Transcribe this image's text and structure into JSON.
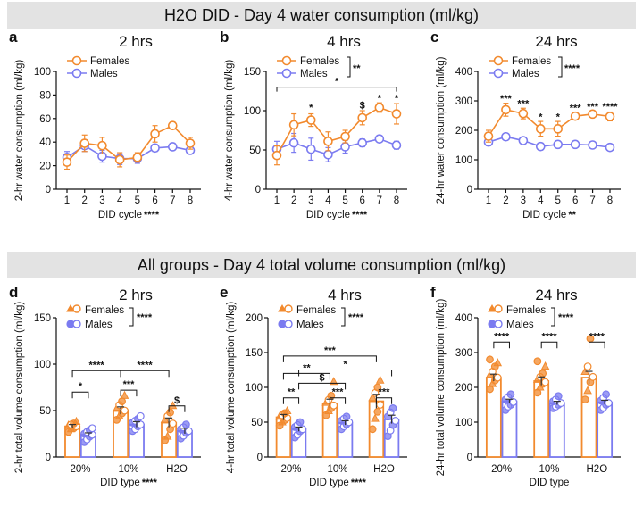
{
  "banner_top": "H2O DID - Day 4 water consumption (ml/kg)",
  "banner_bottom": "All groups - Day 4 total volume consumption (ml/kg)",
  "colors": {
    "females": "#F28A2E",
    "males": "#7B7BF0"
  },
  "chart_data": [
    {
      "id": "a",
      "label": "a",
      "type": "line",
      "title": "2 hrs",
      "xlabel": "DID cycle",
      "xlabel_sig": "****",
      "ylabel": "2-hr water consumption (ml/kg)",
      "categories": [
        "1",
        "2",
        "3",
        "4",
        "5",
        "6",
        "7",
        "8"
      ],
      "ylim": [
        0,
        100
      ],
      "yticks": [
        0,
        20,
        40,
        60,
        80,
        100
      ],
      "legend": {
        "entries": [
          "Females",
          "Males"
        ],
        "sig": ""
      },
      "series": [
        {
          "name": "Females",
          "values": [
            23,
            39,
            37,
            25,
            27,
            47,
            54,
            39
          ],
          "err": [
            6,
            7,
            7,
            6,
            4,
            7,
            3,
            5
          ]
        },
        {
          "name": "Males",
          "values": [
            27,
            37,
            28,
            26,
            26,
            35,
            36,
            33
          ],
          "err": [
            5,
            5,
            5,
            5,
            4,
            3,
            3,
            3
          ]
        }
      ],
      "annotations": []
    },
    {
      "id": "b",
      "label": "b",
      "type": "line",
      "title": "4 hrs",
      "xlabel": "DID cycle",
      "xlabel_sig": "****",
      "ylabel": "4-hr water consumption (ml/kg)",
      "categories": [
        "1",
        "2",
        "3",
        "4",
        "5",
        "6",
        "7",
        "8"
      ],
      "ylim": [
        0,
        150
      ],
      "yticks": [
        0,
        50,
        100,
        150
      ],
      "legend": {
        "entries": [
          "Females",
          "Males"
        ],
        "sig": "**"
      },
      "series": [
        {
          "name": "Females",
          "values": [
            43,
            82,
            88,
            61,
            67,
            91,
            104,
            96
          ],
          "err": [
            12,
            14,
            8,
            12,
            8,
            9,
            6,
            13
          ]
        },
        {
          "name": "Males",
          "values": [
            51,
            59,
            51,
            44,
            54,
            59,
            64,
            56
          ],
          "err": [
            10,
            12,
            14,
            9,
            8,
            5,
            3,
            5
          ]
        }
      ],
      "annotations": [
        {
          "text": "*",
          "x_from": "1",
          "x_to": "8",
          "y": 130,
          "bracket": true
        },
        {
          "text": "*",
          "x": "3",
          "y": 100
        },
        {
          "text": "$",
          "x": "6",
          "y": 103
        },
        {
          "text": "*",
          "x": "7",
          "y": 112
        },
        {
          "text": "*",
          "x": "8",
          "y": 112
        }
      ]
    },
    {
      "id": "c",
      "label": "c",
      "type": "line",
      "title": "24 hrs",
      "xlabel": "DID cycle",
      "xlabel_sig": "**",
      "ylabel": "24-hr water consumption (ml/kg)",
      "categories": [
        "1",
        "2",
        "3",
        "4",
        "5",
        "6",
        "7",
        "8"
      ],
      "ylim": [
        0,
        400
      ],
      "yticks": [
        0,
        100,
        200,
        300,
        400
      ],
      "legend": {
        "entries": [
          "Females",
          "Males"
        ],
        "sig": "****"
      },
      "series": [
        {
          "name": "Females",
          "values": [
            180,
            270,
            257,
            205,
            205,
            248,
            255,
            247
          ],
          "err": [
            20,
            22,
            18,
            25,
            25,
            12,
            10,
            15
          ]
        },
        {
          "name": "Males",
          "values": [
            160,
            178,
            165,
            145,
            152,
            152,
            150,
            142
          ],
          "err": [
            12,
            10,
            8,
            12,
            10,
            8,
            6,
            6
          ]
        }
      ],
      "annotations": [
        {
          "text": "***",
          "x": "2",
          "y": 297
        },
        {
          "text": "***",
          "x": "3",
          "y": 280
        },
        {
          "text": "*",
          "x": "4",
          "y": 235
        },
        {
          "text": "*",
          "x": "5",
          "y": 235
        },
        {
          "text": "***",
          "x": "6",
          "y": 265
        },
        {
          "text": "***",
          "x": "7",
          "y": 270
        },
        {
          "text": "****",
          "x": "8",
          "y": 270
        }
      ]
    },
    {
      "id": "d",
      "label": "d",
      "type": "bar",
      "title": "2 hrs",
      "xlabel": "DID type",
      "xlabel_sig": "****",
      "ylabel": "2-hr total volume consumption (ml/kg)",
      "categories": [
        "20%",
        "10%",
        "H2O"
      ],
      "ylim": [
        0,
        150
      ],
      "yticks": [
        0,
        50,
        100,
        150
      ],
      "legend": {
        "entries": [
          "Females",
          "Males"
        ],
        "sig": "****"
      },
      "series": [
        {
          "name": "Females",
          "values": [
            33,
            50,
            37
          ],
          "err": [
            2,
            4,
            5
          ],
          "points": [
            [
              27,
              30,
              31,
              33,
              34,
              35,
              36,
              38
            ],
            [
              40,
              44,
              47,
              50,
              52,
              56,
              60,
              66
            ],
            [
              18,
              22,
              30,
              36,
              40,
              44,
              48,
              55
            ]
          ]
        },
        {
          "name": "Males",
          "values": [
            24,
            35,
            28
          ],
          "err": [
            2,
            3,
            3
          ],
          "points": [
            [
              16,
              19,
              22,
              24,
              25,
              27,
              29,
              31
            ],
            [
              28,
              30,
              33,
              35,
              37,
              39,
              41,
              44
            ],
            [
              20,
              23,
              26,
              28,
              30,
              32,
              35
            ]
          ]
        }
      ],
      "brackets": [
        {
          "text": "*",
          "from": [
            0,
            0
          ],
          "to": [
            0,
            1
          ],
          "y": 70
        },
        {
          "text": "***",
          "from": [
            1,
            0
          ],
          "to": [
            1,
            1
          ],
          "y": 72
        },
        {
          "text": "$",
          "from": [
            2,
            0
          ],
          "to": [
            2,
            1
          ],
          "y": 55
        },
        {
          "text": "****",
          "from": [
            0,
            0
          ],
          "to": [
            1,
            0
          ],
          "y": 93
        },
        {
          "text": "****",
          "from": [
            1,
            0
          ],
          "to": [
            2,
            0
          ],
          "y": 93
        }
      ]
    },
    {
      "id": "e",
      "label": "e",
      "type": "bar",
      "title": "4 hrs",
      "xlabel": "DID type",
      "xlabel_sig": "****",
      "ylabel": "4-hr total volume consumption (ml/kg)",
      "categories": [
        "20%",
        "10%",
        "H2O"
      ],
      "ylim": [
        0,
        200
      ],
      "yticks": [
        0,
        50,
        100,
        150,
        200
      ],
      "legend": {
        "entries": [
          "Females",
          "Males"
        ],
        "sig": "****"
      },
      "series": [
        {
          "name": "Females",
          "values": [
            57,
            77,
            80
          ],
          "err": [
            4,
            6,
            10
          ],
          "points": [
            [
              45,
              50,
              53,
              56,
              58,
              60,
              63,
              66
            ],
            [
              60,
              66,
              70,
              74,
              78,
              82,
              88,
              108
            ],
            [
              40,
              55,
              65,
              75,
              85,
              92,
              100,
              110
            ]
          ]
        },
        {
          "name": "Males",
          "values": [
            40,
            49,
            54
          ],
          "err": [
            3,
            3,
            6
          ],
          "points": [
            [
              28,
              32,
              37,
              40,
              43,
              46,
              50
            ],
            [
              40,
              44,
              47,
              50,
              52,
              55,
              58
            ],
            [
              30,
              38,
              46,
              52,
              58,
              64,
              70
            ]
          ]
        }
      ],
      "brackets": [
        {
          "text": "**",
          "from": [
            0,
            0
          ],
          "to": [
            0,
            1
          ],
          "y": 85
        },
        {
          "text": "***",
          "from": [
            1,
            0
          ],
          "to": [
            1,
            1
          ],
          "y": 85
        },
        {
          "text": "***",
          "from": [
            2,
            0
          ],
          "to": [
            2,
            1
          ],
          "y": 85
        },
        {
          "text": "$",
          "from": [
            0,
            1
          ],
          "to": [
            1,
            1
          ],
          "y": 106
        },
        {
          "text": "**",
          "from": [
            0,
            0
          ],
          "to": [
            1,
            0
          ],
          "y": 120
        },
        {
          "text": "*",
          "from": [
            0,
            1
          ],
          "to": [
            2,
            1
          ],
          "y": 125
        },
        {
          "text": "***",
          "from": [
            0,
            0
          ],
          "to": [
            2,
            0
          ],
          "y": 145
        }
      ]
    },
    {
      "id": "f",
      "label": "f",
      "type": "bar",
      "title": "24 hrs",
      "xlabel": "DID type",
      "xlabel_sig": "",
      "ylabel": "24-hr total volume consumption (ml/kg)",
      "categories": [
        "20%",
        "10%",
        "H2O"
      ],
      "ylim": [
        0,
        400
      ],
      "yticks": [
        0,
        100,
        200,
        300,
        400
      ],
      "legend": {
        "entries": [
          "Females",
          "Males"
        ],
        "sig": "****"
      },
      "series": [
        {
          "name": "Females",
          "values": [
            228,
            218,
            228
          ],
          "err": [
            10,
            12,
            18
          ],
          "points": [
            [
              195,
              210,
              220,
              228,
              235,
              245,
              260,
              270,
              280
            ],
            [
              185,
              200,
              210,
              215,
              222,
              230,
              240,
              260,
              275
            ],
            [
              165,
              190,
              215,
              230,
              245,
              260,
              340
            ]
          ]
        },
        {
          "name": "Males",
          "values": [
            160,
            155,
            157
          ],
          "err": [
            6,
            5,
            6
          ],
          "points": [
            [
              135,
              145,
              150,
              158,
              165,
              172,
              180
            ],
            [
              140,
              145,
              150,
              155,
              160,
              165,
              175
            ],
            [
              135,
              142,
              150,
              155,
              162,
              170,
              180
            ]
          ]
        }
      ],
      "brackets": [
        {
          "text": "****",
          "from": [
            0,
            0
          ],
          "to": [
            0,
            1
          ],
          "y": 330
        },
        {
          "text": "****",
          "from": [
            1,
            0
          ],
          "to": [
            1,
            1
          ],
          "y": 330
        },
        {
          "text": "****",
          "from": [
            2,
            0
          ],
          "to": [
            2,
            1
          ],
          "y": 330
        }
      ]
    }
  ]
}
